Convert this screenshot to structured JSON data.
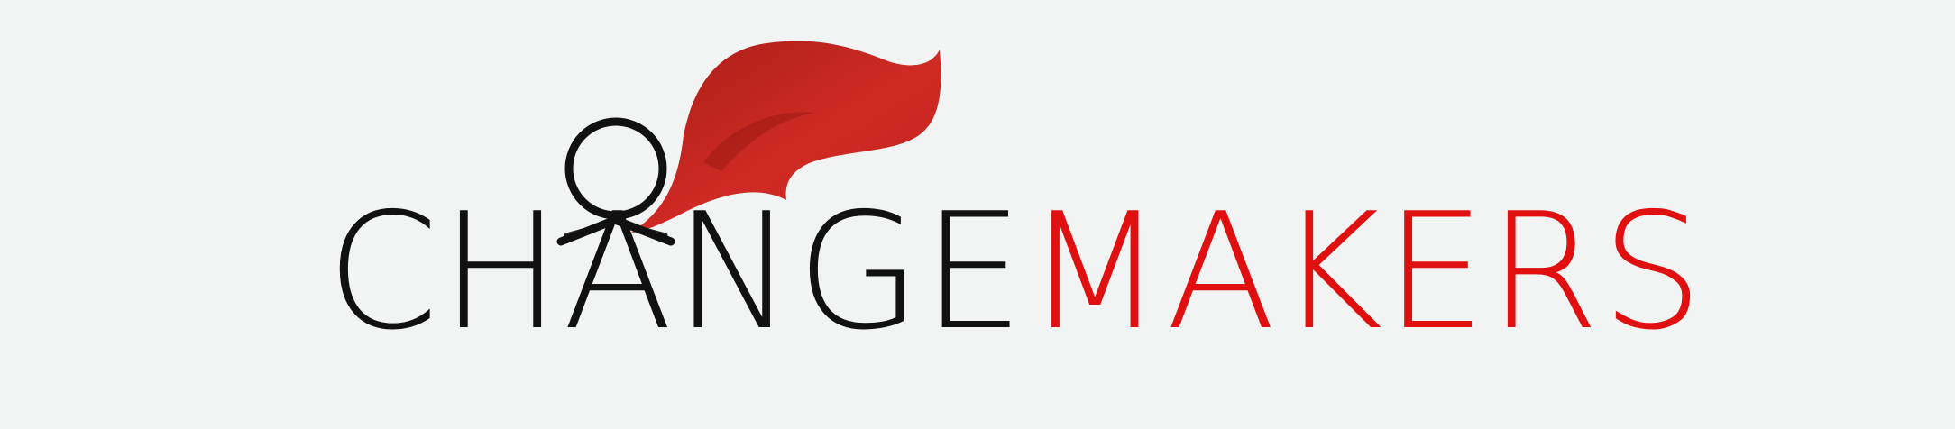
{
  "logo": {
    "word_dark": "CHANGE",
    "word_accent": "MAKERS",
    "color_dark": "#111111",
    "color_accent": "#e01010",
    "cape_color": "#c8221f",
    "background": "#f1f4f3",
    "mascot": "stick-figure-with-red-cape-icon"
  }
}
